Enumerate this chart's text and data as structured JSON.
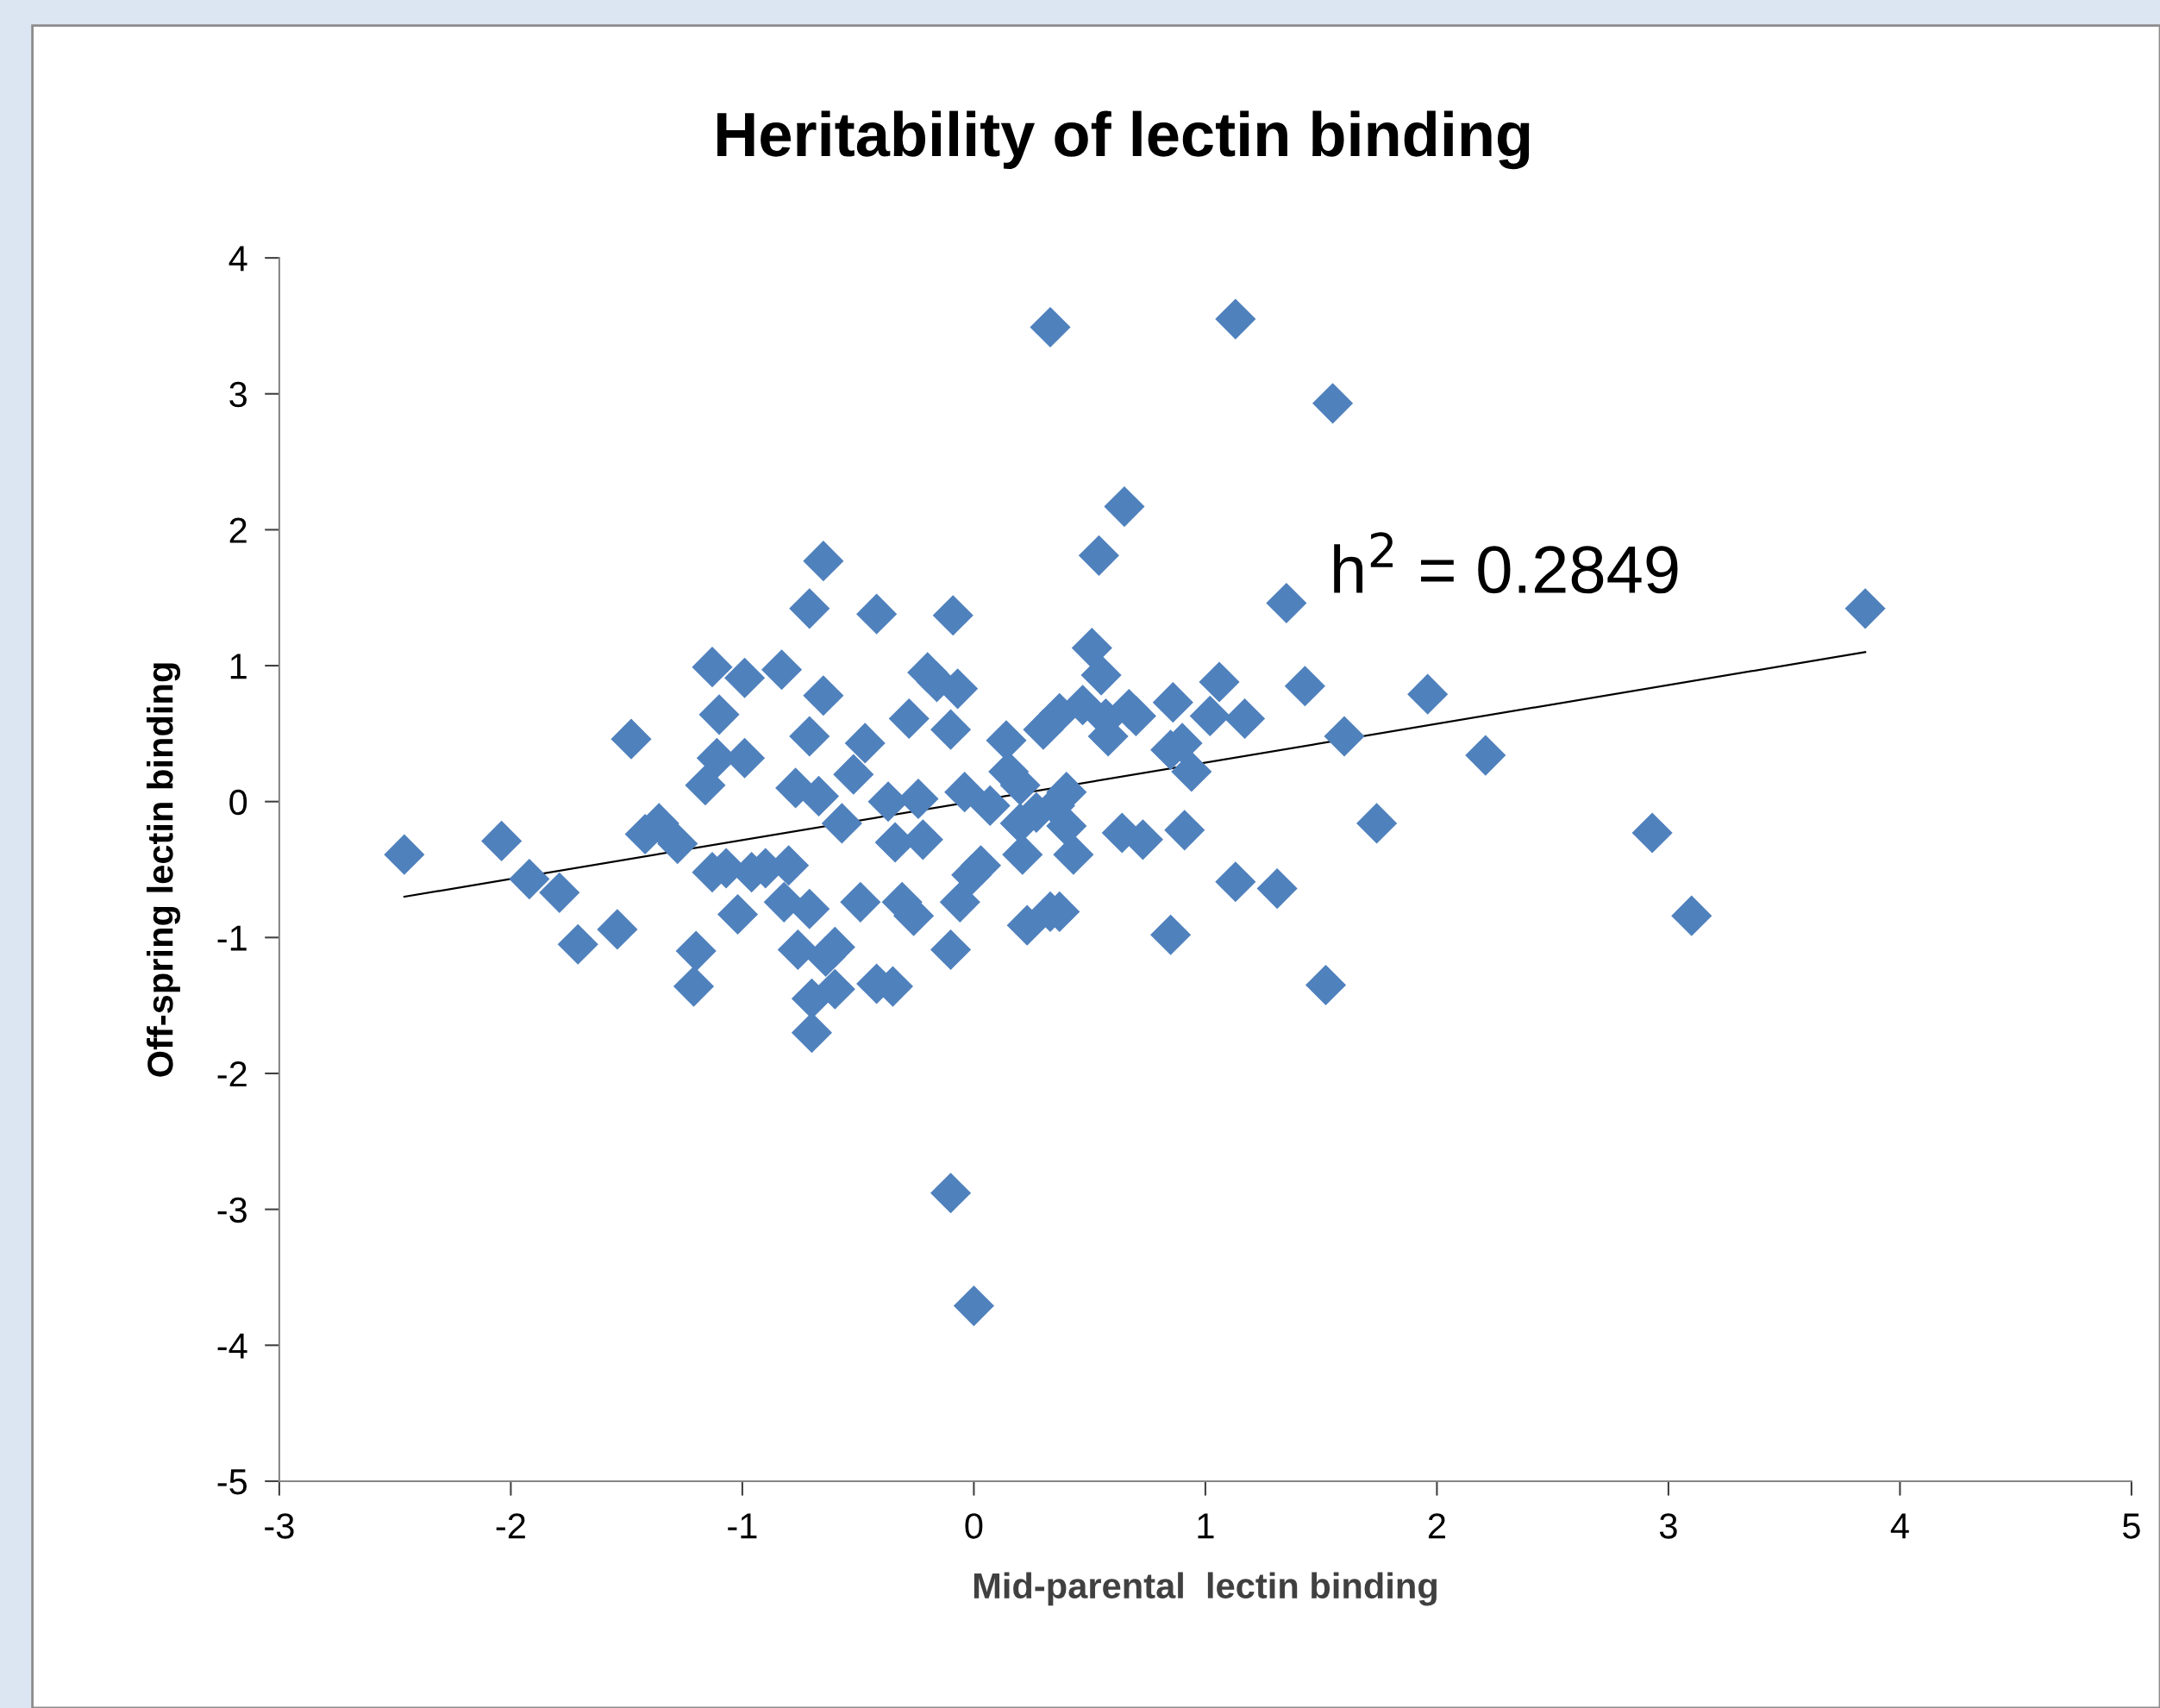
{
  "chart_data": {
    "type": "scatter",
    "title": "Heritability of lectin binding",
    "xlabel": "Mid-parental  lectin binding",
    "ylabel": "Off-spring lectin binding",
    "xlim": [
      -3,
      5
    ],
    "xticks": [
      -3,
      -2,
      -1,
      0,
      1,
      2,
      3,
      4,
      5
    ],
    "ylim": [
      -5,
      4
    ],
    "yticks": [
      -5,
      -4,
      -3,
      -2,
      -1,
      0,
      1,
      2,
      3,
      4
    ],
    "grid": false,
    "legend": false,
    "annotations": [
      "h$^{2}$ = 0.2849"
    ],
    "series": [
      {
        "type": "scatter",
        "marker": "diamond",
        "color": "#4f81bd",
        "x": [
          -2.46,
          -2.04,
          -1.92,
          -1.79,
          -1.71,
          -1.54,
          -1.48,
          -1.42,
          -1.36,
          -1.28,
          -1.2,
          -1.21,
          -1.13,
          -1.1,
          -1.16,
          -1.11,
          -1.13,
          -1.07,
          -1.02,
          -0.99,
          -0.99,
          -0.96,
          -0.9,
          -0.83,
          -0.8,
          -0.82,
          -0.77,
          -0.71,
          -0.71,
          -0.71,
          -0.76,
          -0.7,
          -0.7,
          -0.65,
          -0.65,
          -0.67,
          -0.64,
          -0.6,
          -0.6,
          -0.57,
          -0.52,
          -0.49,
          -0.47,
          -0.42,
          -0.42,
          -0.35,
          -0.37,
          -0.34,
          -0.31,
          -0.28,
          -0.26,
          -0.24,
          -0.22,
          -0.2,
          -0.16,
          -0.1,
          -0.09,
          -0.07,
          -0.1,
          -0.06,
          -0.1,
          0.0,
          -0.04,
          0.03,
          -0.01,
          0.07,
          0.14,
          0.15,
          0.2,
          0.21,
          0.23,
          0.27,
          0.3,
          0.33,
          0.37,
          0.35,
          0.37,
          0.4,
          0.43,
          0.33,
          0.47,
          0.51,
          0.54,
          0.55,
          0.57,
          0.58,
          0.65,
          0.64,
          0.7,
          0.73,
          0.85,
          0.86,
          0.9,
          0.91,
          0.94,
          1.02,
          1.06,
          1.13,
          1.13,
          1.17,
          1.31,
          1.35,
          1.43,
          1.52,
          1.55,
          1.6,
          1.74,
          1.96,
          2.21,
          2.93,
          3.1,
          3.85,
          0.2,
          0.4,
          0.85,
          0.67
        ],
        "values": [
          -0.39,
          -0.29,
          -0.57,
          -0.67,
          -1.05,
          -0.94,
          0.46,
          -0.24,
          -0.16,
          -0.31,
          -1.1,
          -1.36,
          0.99,
          0.64,
          0.12,
          0.32,
          -0.52,
          -0.49,
          -0.83,
          0.91,
          0.32,
          -0.52,
          -0.49,
          0.97,
          -0.47,
          -0.74,
          0.1,
          0.48,
          1.42,
          -0.79,
          -1.09,
          -1.45,
          -1.7,
          1.77,
          0.78,
          0.04,
          -1.14,
          -1.07,
          -1.38,
          -0.16,
          0.2,
          -0.74,
          0.43,
          1.38,
          -1.34,
          -1.36,
          0.0,
          -0.3,
          -0.74,
          0.61,
          -0.84,
          0.02,
          -0.28,
          0.95,
          0.88,
          0.53,
          1.37,
          0.83,
          -1.09,
          -0.74,
          -2.88,
          -3.71,
          0.07,
          -0.47,
          -0.54,
          -0.03,
          0.45,
          0.22,
          0.12,
          -0.39,
          -0.91,
          -0.08,
          0.53,
          -0.81,
          -0.81,
          -0.03,
          0.65,
          0.07,
          -0.39,
          3.49,
          0.71,
          1.13,
          1.81,
          0.93,
          0.61,
          0.48,
          2.17,
          -0.23,
          0.63,
          -0.28,
          -0.98,
          0.73,
          0.43,
          -0.21,
          0.22,
          0.63,
          0.88,
          3.55,
          -0.59,
          0.61,
          -0.64,
          1.46,
          0.85,
          -1.35,
          2.93,
          0.48,
          -0.16,
          0.79,
          0.34,
          -0.23,
          -0.84,
          1.42,
          -0.16,
          -0.18,
          0.38,
          0.68
        ]
      },
      {
        "type": "line",
        "marker": "none",
        "color": "#000000",
        "x": [
          -2.46,
          3.85
        ],
        "values": [
          -0.7,
          1.1
        ]
      }
    ]
  }
}
